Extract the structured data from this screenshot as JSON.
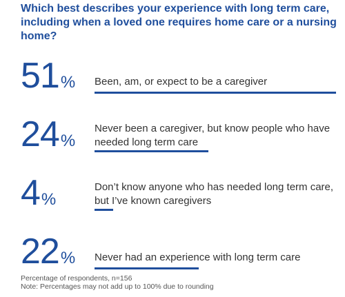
{
  "chart_data": {
    "type": "bar",
    "title": "Which best describes your experience with long term care, including when a loved one requires home care or a nursing home?",
    "categories": [
      "Been, am, or expect to be a caregiver",
      "Never been a caregiver, but know people who have needed long term care",
      "Don’t know anyone who has needed long term care, but I’ve known caregivers",
      "Never had an experience with long term care"
    ],
    "values": [
      51,
      24,
      4,
      22
    ],
    "value_labels": [
      "51",
      "24",
      "4",
      "22"
    ],
    "unit": "%",
    "ylim": [
      0,
      51
    ],
    "grid": false,
    "legend": "none"
  },
  "footnotes": {
    "line1": "Percentage of respondents, n=156",
    "line2": "Note: Percentages may not add up to 100% due to rounding"
  },
  "colors": {
    "accent": "#1f4e9c",
    "text": "#333333",
    "footnote": "#555555"
  }
}
